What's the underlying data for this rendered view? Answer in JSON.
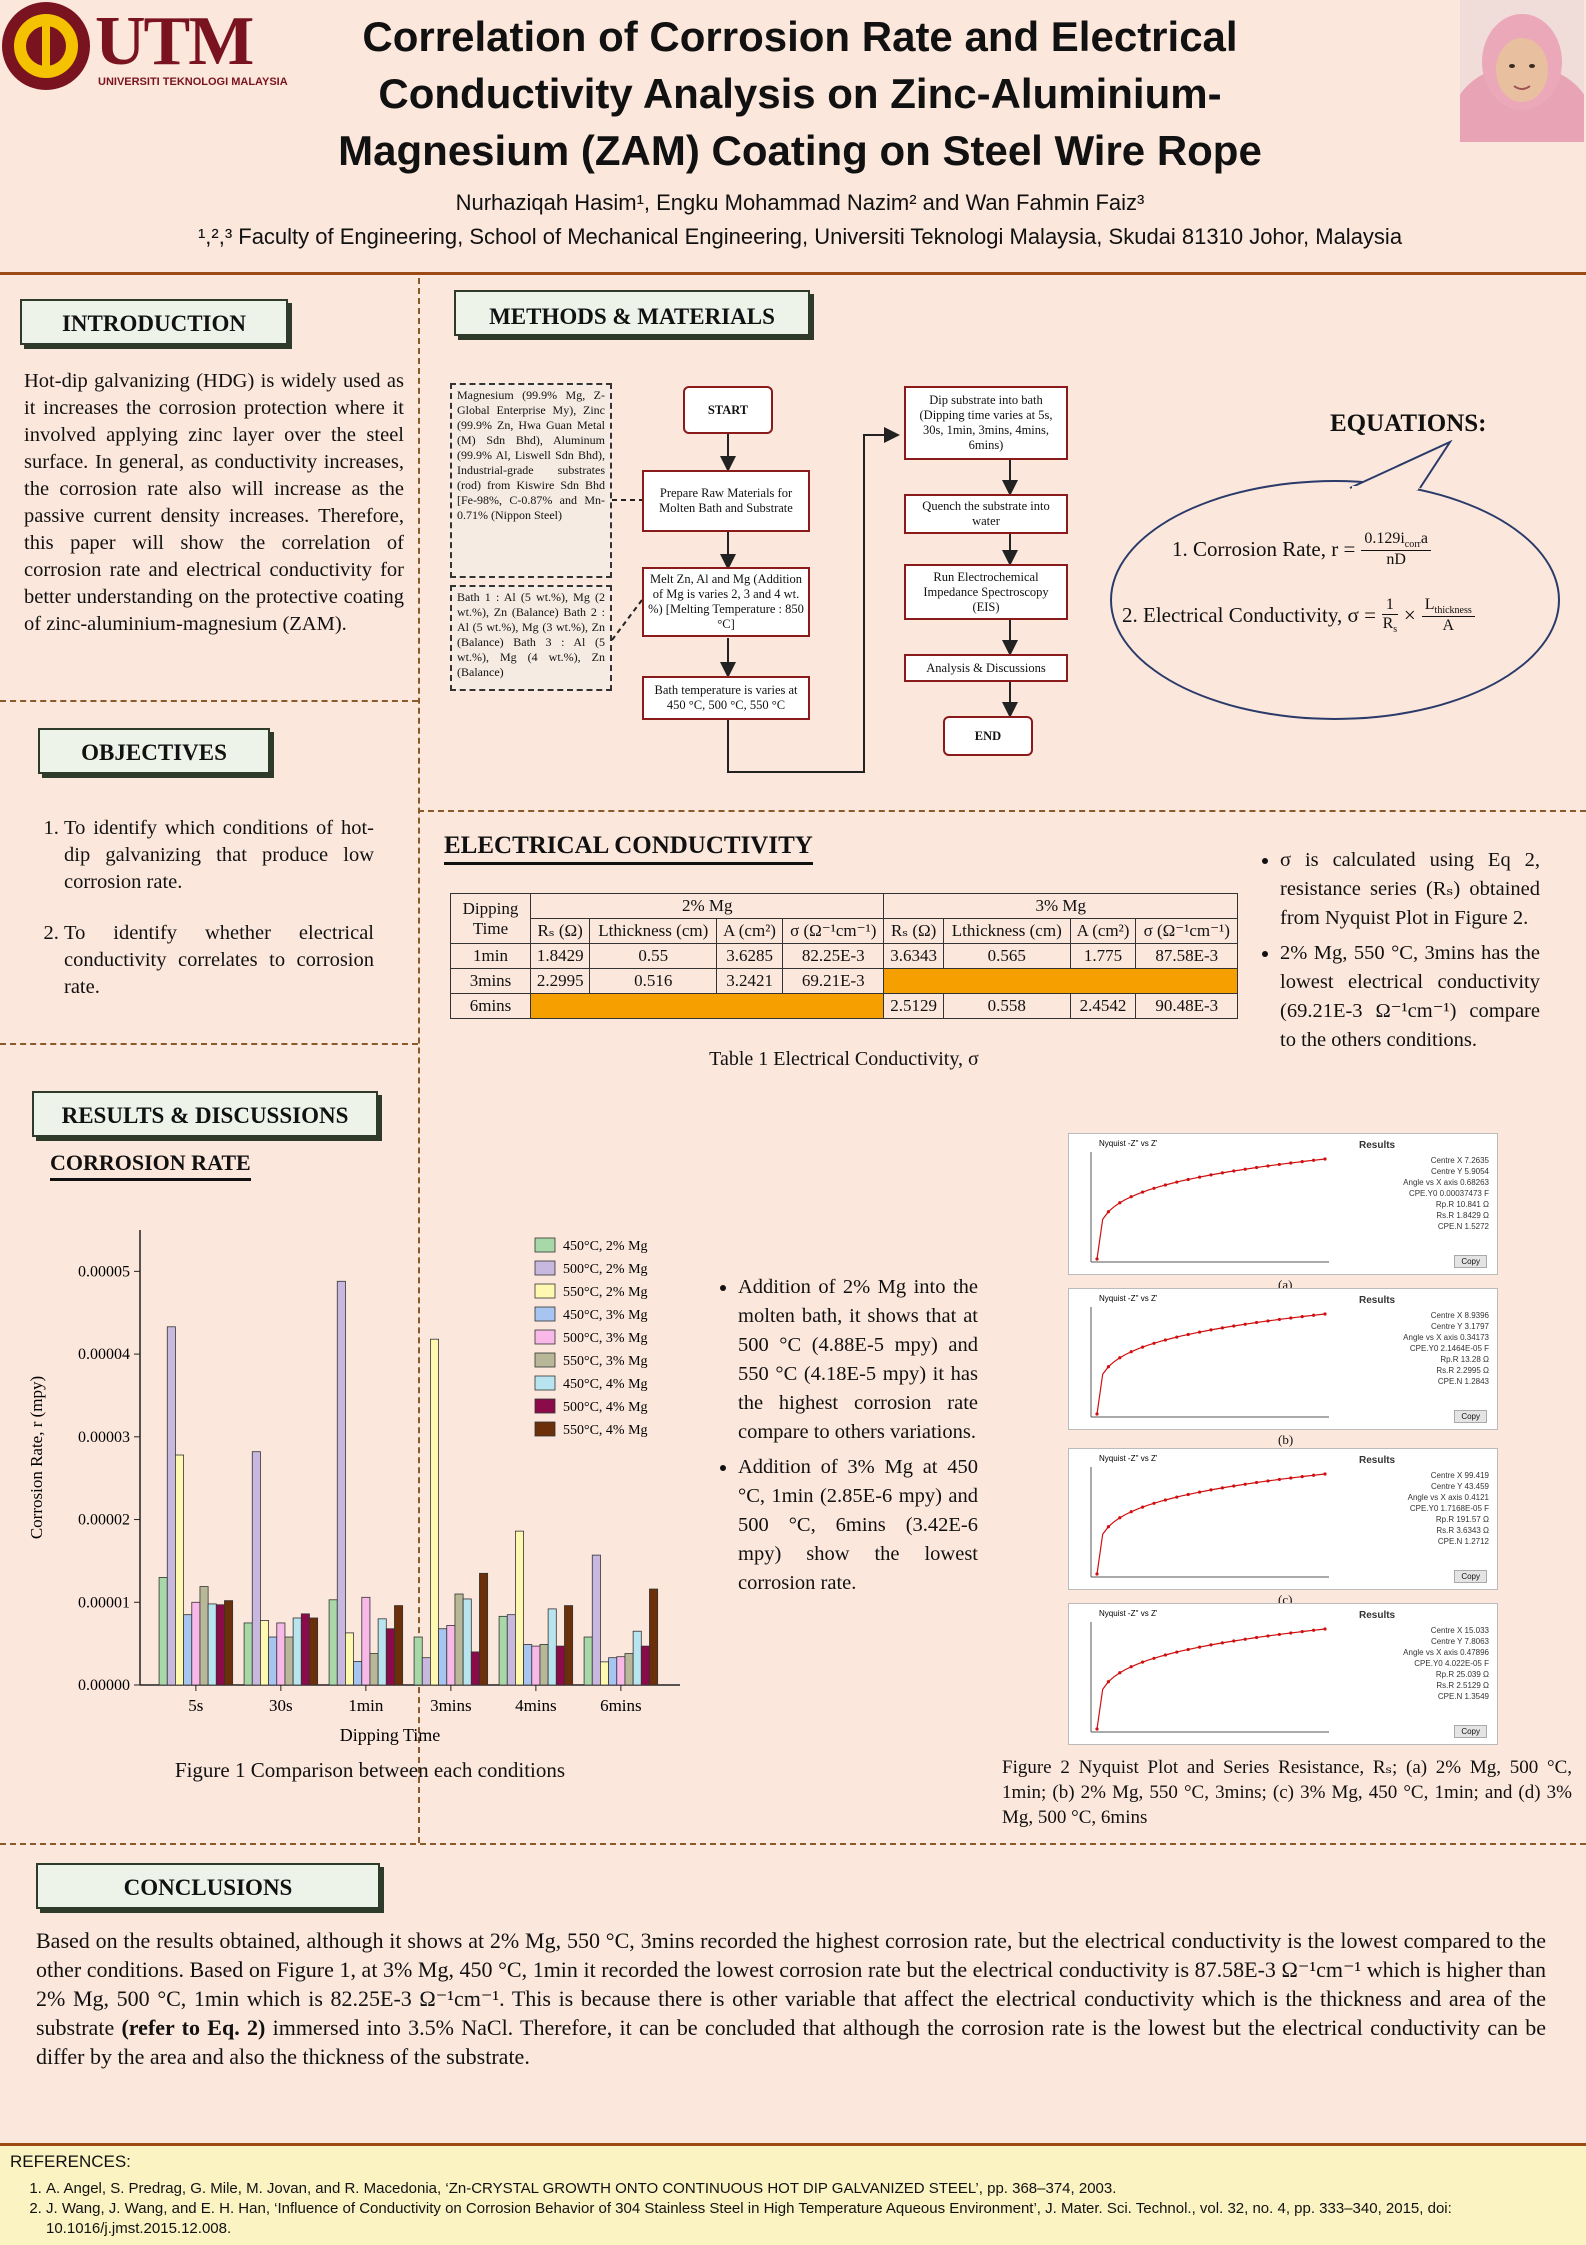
{
  "header": {
    "logo_text": "UTM",
    "logo_sub": "UNIVERSITI TEKNOLOGI MALAYSIA",
    "title": "Correlation of Corrosion Rate and Electrical Conductivity Analysis on Zinc-Aluminium-Magnesium (ZAM) Coating on Steel Wire Rope",
    "authors": "Nurhaziqah Hasim¹, Engku Mohammad Nazim² and Wan Fahmin Faiz³",
    "affiliation": "¹,²,³ Faculty of Engineering, School of Mechanical Engineering, Universiti Teknologi Malaysia, Skudai 81310 Johor, Malaysia"
  },
  "introduction": {
    "label": "INTRODUCTION",
    "text": "Hot-dip galvanizing (HDG) is widely used as it increases the corrosion protection where it involved applying zinc layer over the steel surface. In general, as conductivity increases, the corrosion rate also will increase as the passive current density increases. Therefore, this paper will show the correlation of corrosion rate and electrical conductivity for better understanding on the protective coating of zinc-aluminium-magnesium (ZAM)."
  },
  "objectives": {
    "label": "OBJECTIVES",
    "items": [
      "To identify which conditions of hot-dip galvanizing that produce low corrosion rate.",
      "To identify whether electrical conductivity correlates to corrosion rate."
    ]
  },
  "methods": {
    "label": "METHODS & MATERIALS",
    "materials_box": "Magnesium (99.9% Mg, Z-Global Enterprise My), Zinc (99.9% Zn, Hwa Guan Metal (M) Sdn Bhd), Aluminum (99.9% Al, Liswell Sdn Bhd), Industrial-grade substrates (rod) from Kiswire Sdn Bhd [Fe-98%, C-0.87% and Mn-0.71% (Nippon Steel)",
    "bath_box": "Bath 1 : Al (5 wt.%), Mg (2 wt.%), Zn (Balance) Bath 2 : Al (5 wt.%), Mg (3 wt.%), Zn (Balance) Bath 3 : Al (5 wt.%), Mg (4 wt.%), Zn (Balance)",
    "flow": {
      "start": "START",
      "prepare": "Prepare Raw Materials for Molten Bath and Substrate",
      "melt": "Melt Zn, Al and Mg (Addition of Mg is varies 2, 3 and 4 wt. %) [Melting Temperature : 850 °C]",
      "bath_temp": "Bath temperature is varies at 450 °C, 500 °C, 550 °C",
      "dip": "Dip substrate into bath (Dipping time varies at 5s, 30s, 1min, 3mins, 4mins, 6mins)",
      "quench": "Quench the substrate into water",
      "eis": "Run Electrochemical Impedance Spectroscopy (EIS)",
      "analysis": "Analysis & Discussions",
      "end": "END"
    }
  },
  "equations": {
    "label": "EQUATIONS:",
    "eq1_label": "1.   Corrosion Rate, r =",
    "eq1_num": "0.129i",
    "eq1_num_sub": "corr",
    "eq1_num_tail": "a",
    "eq1_den": "nD",
    "eq2_label": "2.   Electrical Conductivity, σ =",
    "eq2_f1_num": "1",
    "eq2_f1_den": "R",
    "eq2_f1_den_sub": "s",
    "eq2_times": "×",
    "eq2_f2_num": "L",
    "eq2_f2_num_sub": "thickness",
    "eq2_f2_den": "A"
  },
  "electrical": {
    "label": "ELECTRICAL CONDUCTIVITY",
    "table_caption": "Table 1 Electrical Conductivity, σ",
    "group_headers": [
      "2% Mg",
      "3% Mg"
    ],
    "col_headers": [
      "Dipping Time",
      "Rₛ (Ω)",
      "Lthickness (cm)",
      "A (cm²)",
      "σ (Ω⁻¹cm⁻¹)"
    ],
    "rows": [
      {
        "time": "1min",
        "c2": [
          "1.8429",
          "0.55",
          "3.6285",
          "82.25E-3"
        ],
        "c3": [
          "3.6343",
          "0.565",
          "1.775",
          "87.58E-3"
        ]
      },
      {
        "time": "3mins",
        "c2": [
          "2.2995",
          "0.516",
          "3.2421",
          "69.21E-3"
        ],
        "c3": [
          "",
          "",
          "",
          ""
        ]
      },
      {
        "time": "6mins",
        "c2": [
          "",
          "",
          "",
          ""
        ],
        "c3": [
          "2.5129",
          "0.558",
          "2.4542",
          "90.48E-3"
        ]
      }
    ],
    "bullets": [
      "σ is calculated using Eq 2, resistance series (Rₛ) obtained from Nyquist Plot in Figure 2.",
      "2% Mg, 550 °C, 3mins has the lowest electrical conductivity (69.21E-3 Ω⁻¹cm⁻¹) compare to the others conditions."
    ]
  },
  "results": {
    "label": "RESULTS & DISCUSSIONS",
    "sub_label": "CORROSION RATE",
    "fig1_caption": "Figure 1 Comparison between each conditions",
    "bullets": [
      "Addition of 2% Mg into the molten bath, it shows that at 500 °C (4.88E-5 mpy) and 550 °C (4.18E-5 mpy) it has the highest corrosion rate compare to others variations.",
      "Addition of 3% Mg at 450 °C, 1min (2.85E-6 mpy) and 500 °C, 6mins (3.42E-6 mpy) show the lowest corrosion rate."
    ],
    "fig2_caption": "Figure 2 Nyquist Plot and Series Resistance, Rₛ; (a) 2% Mg, 500 °C, 1min; (b) 2% Mg, 550 °C, 3mins; (c) 3% Mg, 450 °C, 1min; and (d) 3% Mg, 500 °C, 6mins"
  },
  "nyquist": [
    {
      "panel_label": "(a)",
      "title": "Nyquist -Z'' vs Z'",
      "results_title": "Results",
      "copy": "Copy",
      "results": [
        "Centre X  7.2635",
        "Centre Y  5.9054",
        "Angle vs X axis  0.68263",
        "CPE.Y0  0.00037473 F",
        "Rp.R  10.841 Ω",
        "Rs.R  1.8429 Ω",
        "CPE.N  1.5272"
      ]
    },
    {
      "panel_label": "(b)",
      "title": "Nyquist -Z'' vs Z'",
      "results_title": "Results",
      "copy": "Copy",
      "results": [
        "Centre X  8.9396",
        "Centre Y  3.1797",
        "Angle vs X axis  0.34173",
        "CPE.Y0  2.1464E-05 F",
        "Rp.R  13.28 Ω",
        "Rs.R  2.2995 Ω",
        "CPE.N  1.2843"
      ]
    },
    {
      "panel_label": "(c)",
      "title": "Nyquist -Z'' vs Z'",
      "results_title": "Results",
      "copy": "Copy",
      "results": [
        "Centre X  99.419",
        "Centre Y  43.459",
        "Angle vs X axis  0.4121",
        "CPE.Y0  1.7168E-05 F",
        "Rp.R  191.57 Ω",
        "Rs.R  3.6343 Ω",
        "CPE.N  1.2712"
      ]
    },
    {
      "panel_label": "",
      "title": "Nyquist -Z'' vs Z'",
      "results_title": "Results",
      "copy": "Copy",
      "results": [
        "Centre X  15.033",
        "Centre Y  7.8063",
        "Angle vs X axis  0.47896",
        "CPE.Y0  4.022E-05 F",
        "Rp.R  25.039 Ω",
        "Rs.R  2.5129 Ω",
        "CPE.N  1.3549"
      ]
    }
  ],
  "conclusions": {
    "label": "CONCLUSIONS",
    "text_1": "Based on the results obtained, although it shows at 2% Mg, 550 °C, 3mins recorded the highest corrosion rate, but the electrical conductivity is the lowest compared to the other conditions. Based on Figure 1, at 3% Mg, 450 °C, 1min it recorded the lowest corrosion rate but the electrical conductivity is 87.58E-3 Ω⁻¹cm⁻¹ which is higher than 2% Mg, 500 °C, 1min which is 82.25E-3 Ω⁻¹cm⁻¹. This is because there is other variable that affect the electrical conductivity which is the thickness and area of the substrate ",
    "text_bold": "(refer to Eq. 2)",
    "text_2": " immersed into 3.5% NaCl. Therefore, it can be concluded that although the corrosion rate is the lowest but the electrical conductivity can be differ by the area and also the thickness of the substrate."
  },
  "references": {
    "label": "REFERENCES:",
    "items": [
      "A. Angel, S. Predrag, G. Mile, M. Jovan, and R. Macedonia, ‘Zn-CRYSTAL GROWTH ONTO CONTINUOUS HOT DIP GALVANIZED STEEL’, pp. 368–374, 2003.",
      "J. Wang, J. Wang, and E. H. Han, ‘Influence of Conductivity on Corrosion Behavior of 304 Stainless Steel in High Temperature Aqueous Environment’, J. Mater. Sci. Technol., vol. 32, no. 4, pp. 333–340, 2015, doi: 10.1016/j.jmst.2015.12.008."
    ]
  },
  "colors": {
    "brand": "#7a1320",
    "rule": "#9a4a12",
    "highlight": "#f5a000",
    "background": "#fbe7dc"
  },
  "chart_data": {
    "type": "bar",
    "title": "",
    "xlabel": "Dipping Time",
    "ylabel": "Corrosion Rate, r (mpy)",
    "categories": [
      "5s",
      "30s",
      "1min",
      "3mins",
      "4mins",
      "6mins"
    ],
    "ylim": [
      0,
      5.5e-05
    ],
    "yticks": [
      "0.00000",
      "0.00001",
      "0.00002",
      "0.00003",
      "0.00004",
      "0.00005"
    ],
    "legend_position": "top-right",
    "series": [
      {
        "name": "450°C, 2% Mg",
        "color": "#a8d8a8",
        "values": [
          1.3e-05,
          7.5e-06,
          1.03e-05,
          5.8e-06,
          8.3e-06,
          5.8e-06
        ]
      },
      {
        "name": "500°C, 2% Mg",
        "color": "#c8b8e0",
        "values": [
          4.33e-05,
          2.82e-05,
          4.88e-05,
          3.3e-06,
          8.5e-06,
          1.57e-05
        ]
      },
      {
        "name": "550°C, 2% Mg",
        "color": "#fff8b0",
        "values": [
          2.78e-05,
          7.8e-06,
          6.3e-06,
          4.18e-05,
          1.86e-05,
          2.8e-06
        ]
      },
      {
        "name": "450°C, 3% Mg",
        "color": "#a8c4f0",
        "values": [
          8.5e-06,
          5.8e-06,
          2.85e-06,
          6.8e-06,
          4.9e-06,
          3.3e-06
        ]
      },
      {
        "name": "500°C, 3% Mg",
        "color": "#f8b8e8",
        "values": [
          1e-05,
          7.5e-06,
          1.06e-05,
          7.2e-06,
          4.7e-06,
          3.42e-06
        ]
      },
      {
        "name": "550°C, 3% Mg",
        "color": "#b8b898",
        "values": [
          1.19e-05,
          5.8e-06,
          3.8e-06,
          1.1e-05,
          4.9e-06,
          3.8e-06
        ]
      },
      {
        "name": "450°C, 4% Mg",
        "color": "#b8e4f0",
        "values": [
          9.8e-06,
          8.1e-06,
          8e-06,
          1.04e-05,
          9.2e-06,
          6.5e-06
        ]
      },
      {
        "name": "500°C, 4% Mg",
        "color": "#8b0a4a",
        "values": [
          9.7e-06,
          8.6e-06,
          6.8e-06,
          4e-06,
          4.7e-06,
          4.7e-06
        ]
      },
      {
        "name": "550°C, 4% Mg",
        "color": "#6b2f0a",
        "values": [
          1.02e-05,
          8.1e-06,
          9.6e-06,
          1.35e-05,
          9.6e-06,
          1.16e-05
        ]
      }
    ]
  }
}
